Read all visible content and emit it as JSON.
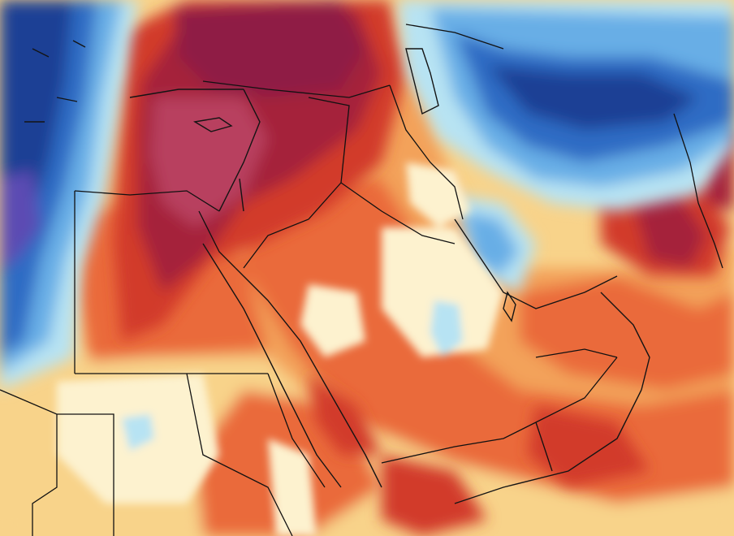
{
  "map": {
    "colors": {
      "background_neutral": "#fbf7f0",
      "cold_deep": "#1e3f95",
      "cold_mid": "#2f6cc4",
      "cold_light": "#68aee6",
      "cool_pale": "#b7e3f3",
      "neutral_pale": "#fdf2cf",
      "warm_pale": "#f8d38a",
      "warm_mid": "#f3a25a",
      "warm_orange": "#ea6b3b",
      "hot_red": "#d23a2c",
      "hot_dark": "#a5243a",
      "hot_max": "#8f1e44",
      "hot_magenta": "#b8405f",
      "violet": "#5b4bb3",
      "border_line": "#111111",
      "sea_outline": "#141414"
    },
    "legend": null,
    "labels": []
  }
}
